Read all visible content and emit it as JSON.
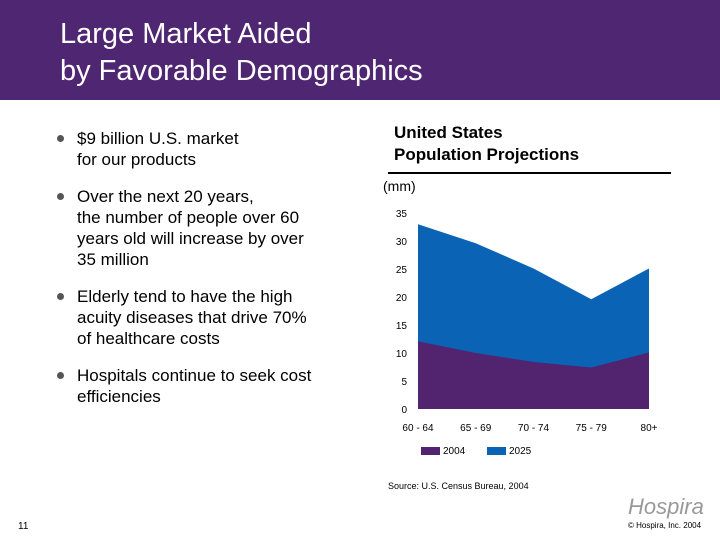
{
  "header": {
    "title_line1": "Large Market Aided",
    "title_line2": "by Favorable Demographics"
  },
  "bullets": [
    {
      "line1": "$9 billion U.S. market",
      "line2": "for our products"
    },
    {
      "line1": "Over the next 20 years,",
      "line2": "the number of people over 60",
      "line3": "years old will increase by over",
      "line4": "35 million"
    },
    {
      "line1": "Elderly tend to have the high",
      "line2": "acuity diseases that drive 70%",
      "line3": "of healthcare costs"
    },
    {
      "line1": "Hospitals continue to seek cost",
      "line2": "efficiencies"
    }
  ],
  "chart_data": {
    "type": "area",
    "title": "United States Population Projections",
    "title_line1": "United States",
    "title_line2": "Population Projections",
    "ylabel": "(mm)",
    "categories": [
      "60 - 64",
      "65 - 69",
      "70 - 74",
      "75 - 79",
      "80+"
    ],
    "yticks": [
      "0",
      "5",
      "10",
      "15",
      "20",
      "25",
      "30",
      "35"
    ],
    "ylim": [
      0,
      35
    ],
    "grid": false,
    "legend_position": "bottom",
    "series": [
      {
        "name": "2025",
        "color": "#0a63b5",
        "values": [
          33.0,
          29.6,
          25.1,
          19.6,
          25.1
        ]
      },
      {
        "name": "2004",
        "color": "#52236e",
        "values": [
          12.1,
          10.0,
          8.4,
          7.4,
          10.1
        ]
      }
    ],
    "source": "Source: U.S. Census Bureau, 2004"
  },
  "footer": {
    "page": "11",
    "copyright": "© Hospira, Inc. 2004",
    "logo": "Hospira"
  },
  "colors": {
    "header": "#4f2672"
  }
}
